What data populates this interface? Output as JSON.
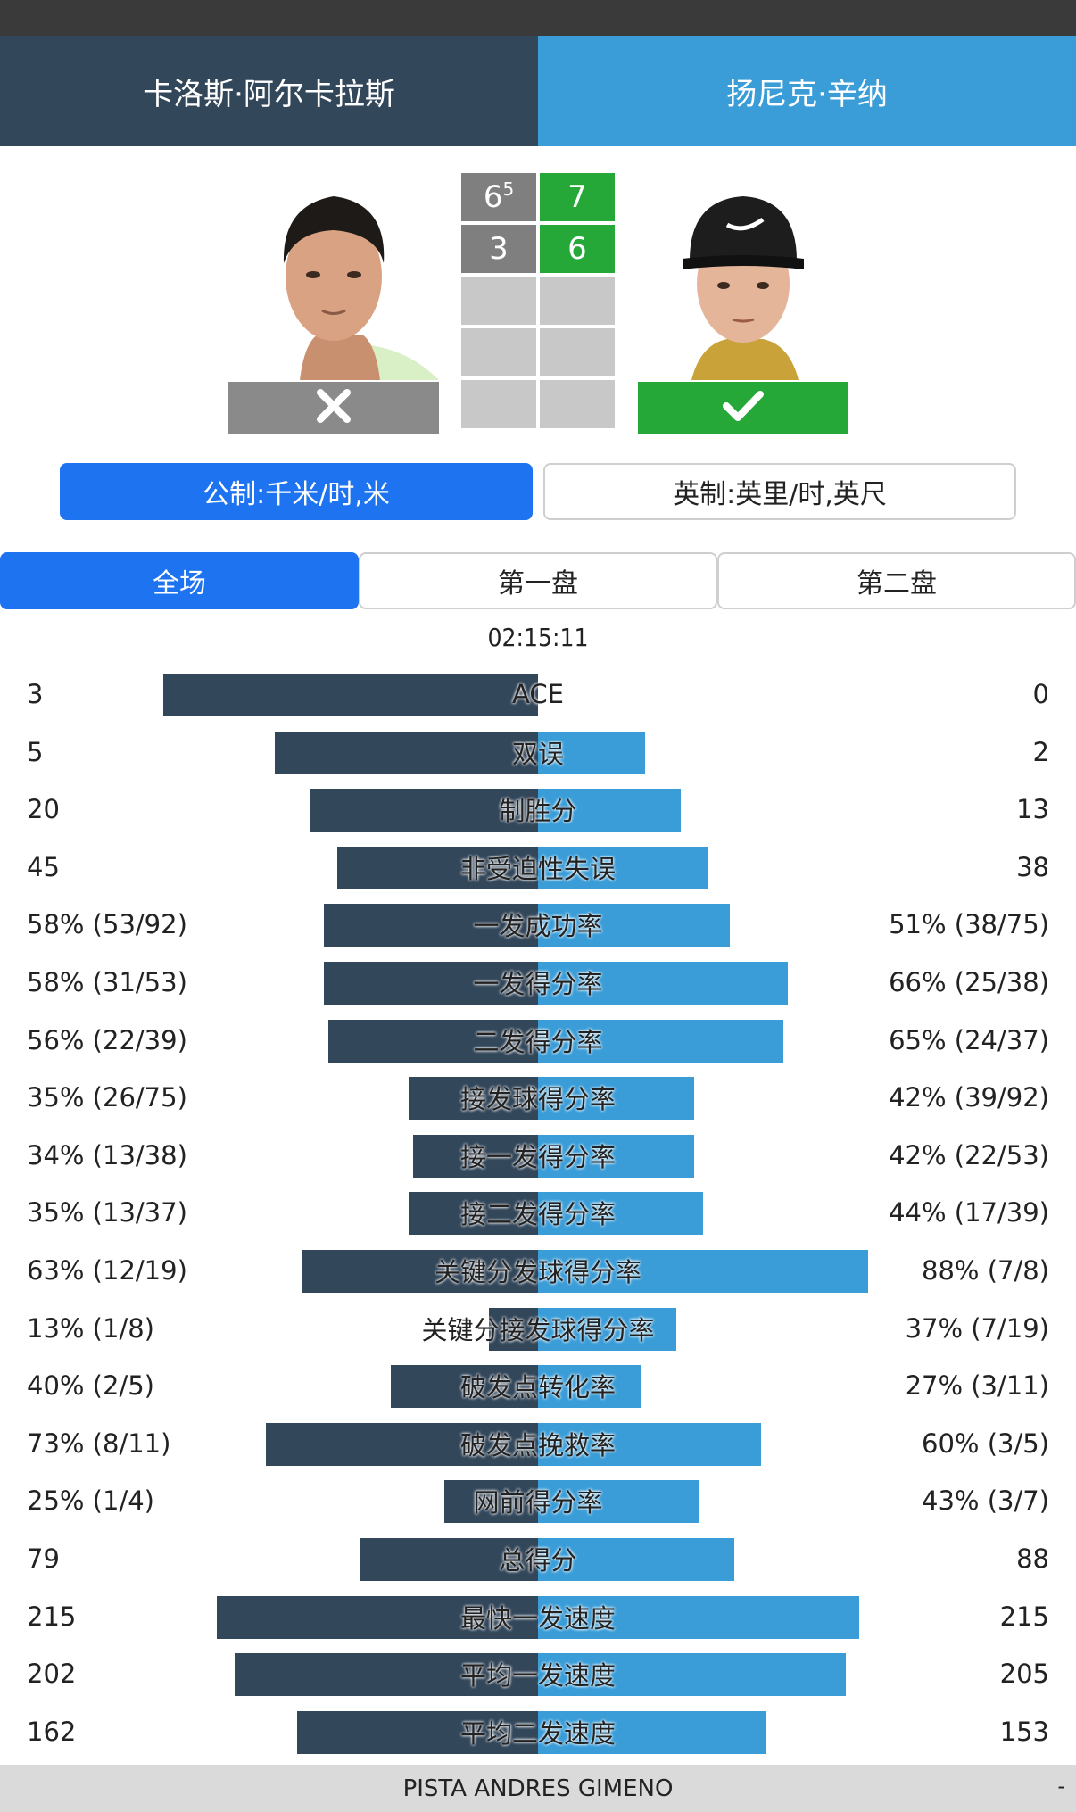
{
  "header": {
    "player1": "卡洛斯·阿尔卡拉斯",
    "player2": "扬尼克·辛纳"
  },
  "scores": {
    "p1": [
      {
        "main": "6",
        "tb": "5"
      },
      {
        "main": "3",
        "tb": ""
      },
      {
        "main": "",
        "tb": ""
      },
      {
        "main": "",
        "tb": ""
      },
      {
        "main": "",
        "tb": ""
      }
    ],
    "p2": [
      {
        "main": "7",
        "tb": ""
      },
      {
        "main": "6",
        "tb": ""
      },
      {
        "main": "",
        "tb": ""
      },
      {
        "main": "",
        "tb": ""
      },
      {
        "main": "",
        "tb": ""
      }
    ]
  },
  "result": {
    "p1": "lose",
    "p2": "win"
  },
  "units": {
    "metric": "公制:千米/时,米",
    "imperial": "英制:英里/时,英尺"
  },
  "tabs": [
    "全场",
    "第一盘",
    "第二盘"
  ],
  "duration": "02:15:11",
  "stats": [
    {
      "label": "ACE",
      "left": "3",
      "right": "0",
      "lf": 0.84,
      "rf": 0.0
    },
    {
      "label": "双误",
      "left": "5",
      "right": "2",
      "lf": 0.59,
      "rf": 0.24
    },
    {
      "label": "制胜分",
      "left": "20",
      "right": "13",
      "lf": 0.51,
      "rf": 0.32
    },
    {
      "label": "非受迫性失误",
      "left": "45",
      "right": "38",
      "lf": 0.45,
      "rf": 0.38
    },
    {
      "label": "一发成功率",
      "left": "58% (53/92)",
      "right": "51% (38/75)",
      "lf": 0.48,
      "rf": 0.43
    },
    {
      "label": "一发得分率",
      "left": "58% (31/53)",
      "right": "66% (25/38)",
      "lf": 0.48,
      "rf": 0.56
    },
    {
      "label": "二发得分率",
      "left": "56% (22/39)",
      "right": "65% (24/37)",
      "lf": 0.47,
      "rf": 0.55
    },
    {
      "label": "接发球得分率",
      "left": "35% (26/75)",
      "right": "42% (39/92)",
      "lf": 0.29,
      "rf": 0.35
    },
    {
      "label": "接一发得分率",
      "left": "34% (13/38)",
      "right": "42% (22/53)",
      "lf": 0.28,
      "rf": 0.35
    },
    {
      "label": "接二发得分率",
      "left": "35% (13/37)",
      "right": "44% (17/39)",
      "lf": 0.29,
      "rf": 0.37
    },
    {
      "label": "关键分发球得分率",
      "left": "63% (12/19)",
      "right": "88% (7/8)",
      "lf": 0.53,
      "rf": 0.74
    },
    {
      "label": "关键分接发球得分率",
      "left": "13% (1/8)",
      "right": "37% (7/19)",
      "lf": 0.11,
      "rf": 0.31
    },
    {
      "label": "破发点转化率",
      "left": "40% (2/5)",
      "right": "27% (3/11)",
      "lf": 0.33,
      "rf": 0.23
    },
    {
      "label": "破发点挽救率",
      "left": "73% (8/11)",
      "right": "60% (3/5)",
      "lf": 0.61,
      "rf": 0.5
    },
    {
      "label": "网前得分率",
      "left": "25% (1/4)",
      "right": "43% (3/7)",
      "lf": 0.21,
      "rf": 0.36
    },
    {
      "label": "总得分",
      "left": "79",
      "right": "88",
      "lf": 0.4,
      "rf": 0.44
    },
    {
      "label": "最快一发速度",
      "left": "215",
      "right": "215",
      "lf": 0.72,
      "rf": 0.72
    },
    {
      "label": "平均一发速度",
      "left": "202",
      "right": "205",
      "lf": 0.68,
      "rf": 0.69
    },
    {
      "label": "平均二发速度",
      "left": "162",
      "right": "153",
      "lf": 0.54,
      "rf": 0.51
    }
  ],
  "footer": {
    "venue": "PISTA ANDRES GIMENO",
    "corner": "-"
  },
  "colors": {
    "dark": "#33475b",
    "light": "#3a9dd8",
    "win": "#26a839",
    "lose": "#8a8a8a",
    "active": "#1e73f0"
  }
}
